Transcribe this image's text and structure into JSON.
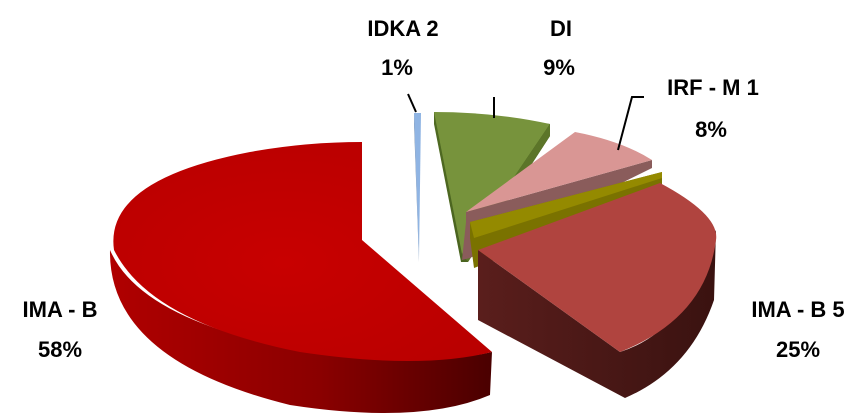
{
  "chart_data": {
    "type": "pie",
    "style": "3d-exploded",
    "legend": "none",
    "slices": [
      {
        "label": "IDKA 2",
        "value": 1,
        "pct_label": "1%",
        "color": "#8FB4E3"
      },
      {
        "label": "DI",
        "value": 9,
        "pct_label": "9%",
        "color": "#77933C"
      },
      {
        "label": "IRF - M 1",
        "value": 8,
        "pct_label": "8%",
        "color": "#D99694"
      },
      {
        "label": "",
        "value": 0,
        "pct_label": "",
        "color": "#948A00"
      },
      {
        "label": "IMA - B 5",
        "value": 25,
        "pct_label": "25%",
        "color": "#B0443F"
      },
      {
        "label": "IMA - B",
        "value": 58,
        "pct_label": "58%",
        "color": "#C00000"
      }
    ]
  }
}
